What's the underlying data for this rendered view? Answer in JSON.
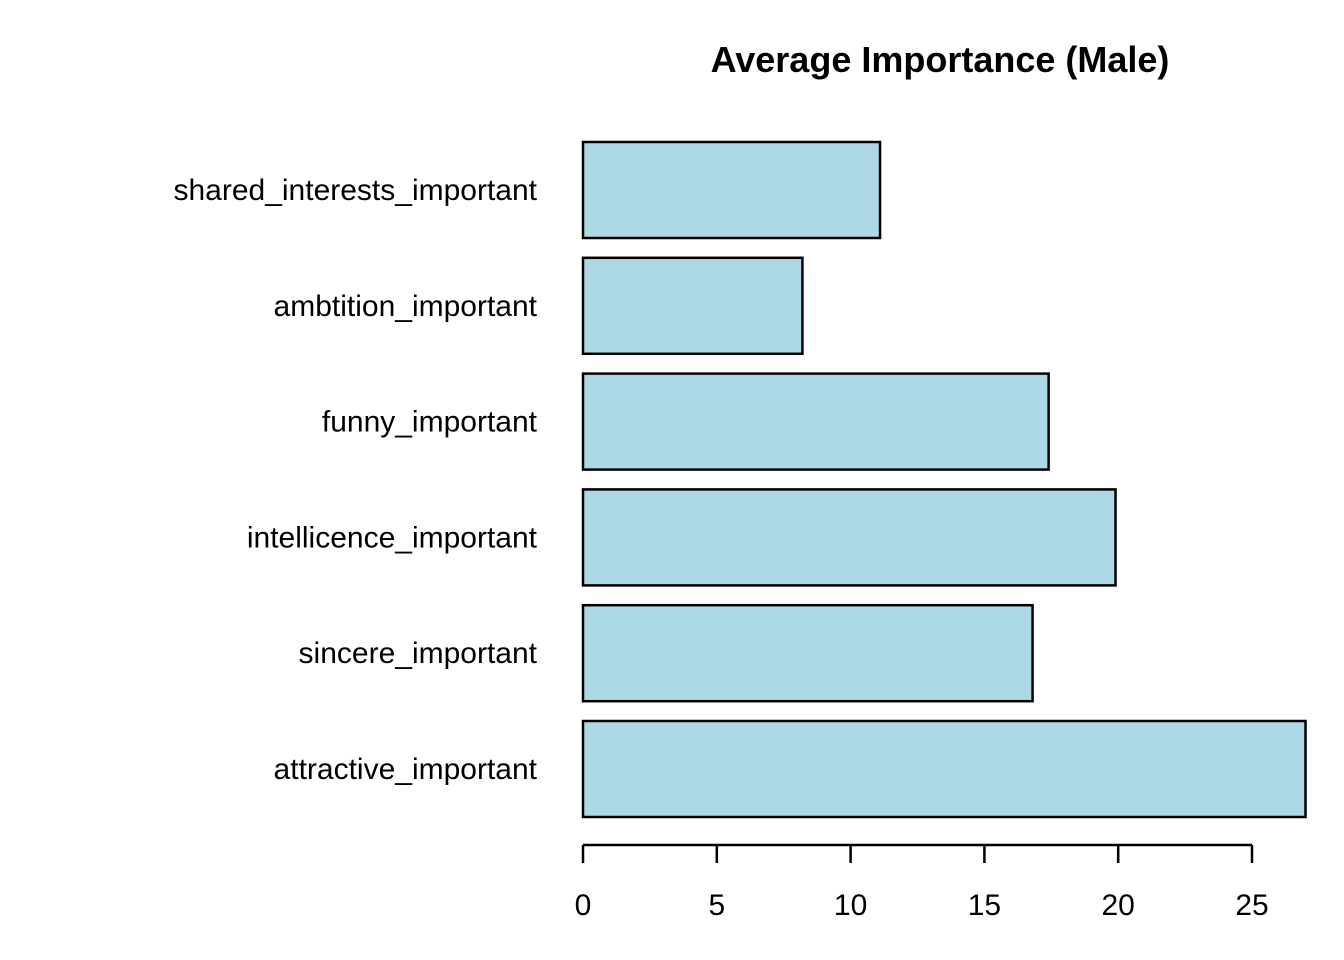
{
  "chart_data": {
    "type": "bar",
    "orientation": "horizontal",
    "title": "Average Importance (Male)",
    "xlabel": "",
    "ylabel": "",
    "categories": [
      "attractive_important",
      "sincere_important",
      "intellicence_important",
      "funny_important",
      "ambtition_important",
      "shared_interests_important"
    ],
    "values": [
      27.0,
      16.8,
      19.9,
      17.4,
      8.2,
      11.1
    ],
    "xlim": [
      0,
      27
    ],
    "x_ticks": [
      0,
      5,
      10,
      15,
      20,
      25
    ],
    "grid": false,
    "legend": "none",
    "colors": {
      "bar_fill": "#add8e6",
      "bar_border": "#000000",
      "text": "#000000"
    }
  }
}
